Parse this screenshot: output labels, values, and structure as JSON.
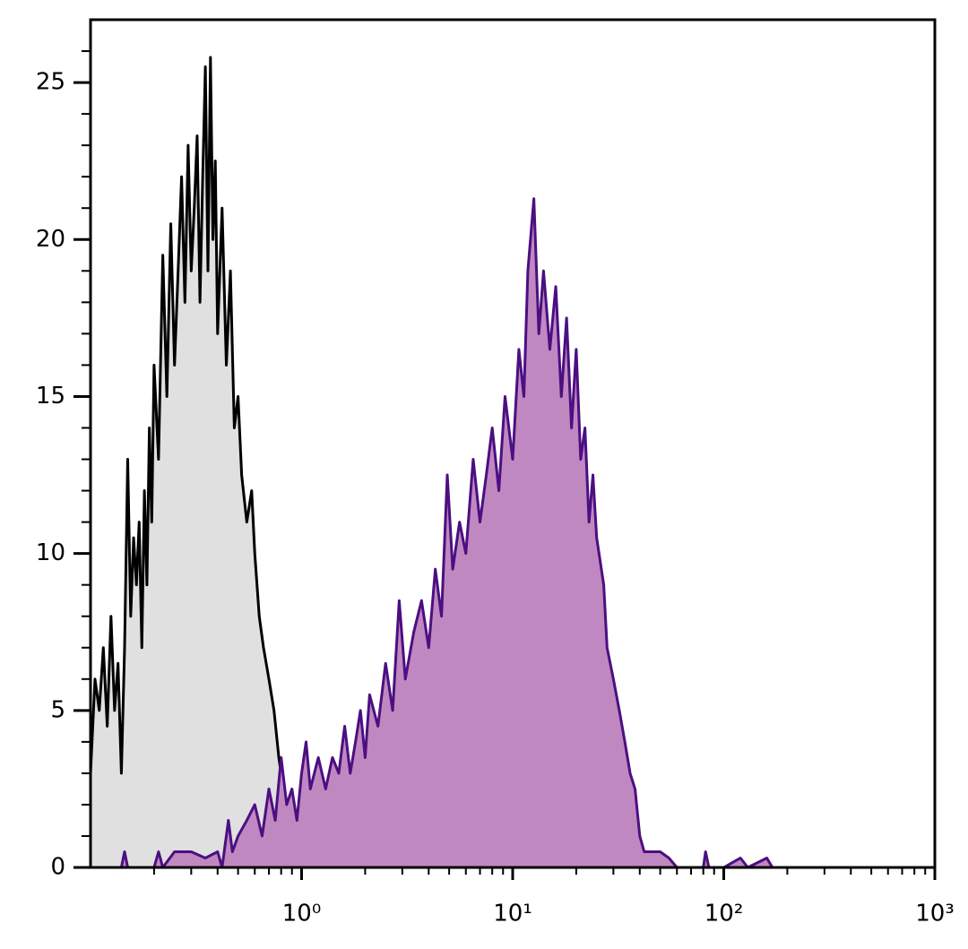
{
  "chart_data": {
    "type": "histogram-line",
    "xscale": "log",
    "xlim": [
      0.1,
      1000
    ],
    "xticks": [
      {
        "value": 1,
        "label": "10⁰"
      },
      {
        "value": 10,
        "label": "10¹"
      },
      {
        "value": 100,
        "label": "10²"
      },
      {
        "value": 1000,
        "label": "10³"
      }
    ],
    "xminorticks": [
      0.2,
      0.3,
      0.4,
      0.5,
      0.6,
      0.7,
      0.8,
      0.9,
      2,
      3,
      4,
      5,
      6,
      7,
      8,
      9,
      20,
      30,
      40,
      50,
      60,
      70,
      80,
      90,
      200,
      300,
      400,
      500,
      600,
      700,
      800,
      900
    ],
    "ylim": [
      0,
      27
    ],
    "yticks": [
      0,
      5,
      10,
      15,
      20,
      25
    ],
    "yminorticks": [
      1,
      2,
      3,
      4,
      6,
      7,
      8,
      9,
      11,
      12,
      13,
      14,
      16,
      17,
      18,
      19,
      21,
      22,
      23,
      24,
      26
    ],
    "series": [
      {
        "color": "#000000",
        "fill": "#e0e0e0",
        "x": [
          0.1,
          0.105,
          0.11,
          0.115,
          0.12,
          0.125,
          0.13,
          0.135,
          0.14,
          0.145,
          0.15,
          0.155,
          0.16,
          0.165,
          0.17,
          0.175,
          0.18,
          0.185,
          0.19,
          0.195,
          0.2,
          0.21,
          0.22,
          0.23,
          0.24,
          0.25,
          0.26,
          0.27,
          0.28,
          0.29,
          0.3,
          0.31,
          0.32,
          0.33,
          0.34,
          0.35,
          0.36,
          0.37,
          0.38,
          0.39,
          0.4,
          0.42,
          0.44,
          0.46,
          0.48,
          0.5,
          0.52,
          0.55,
          0.58,
          0.6,
          0.63,
          0.66,
          0.7,
          0.74,
          0.78,
          0.82,
          0.86,
          0.9,
          1.0
        ],
        "values": [
          3,
          6,
          5,
          7,
          4.5,
          8,
          5,
          6.5,
          3,
          7,
          13,
          8,
          10.5,
          9,
          11,
          7,
          12,
          9,
          14,
          11,
          16,
          13,
          19.5,
          15,
          20.5,
          16,
          19,
          22,
          18,
          23,
          19,
          21,
          23.3,
          18,
          22,
          25.5,
          19,
          25.8,
          20,
          22.5,
          17,
          21,
          16,
          19,
          14,
          15,
          12.5,
          11,
          12,
          10,
          8,
          7,
          6,
          5,
          3.5,
          2.5,
          1,
          0,
          0
        ]
      },
      {
        "color": "#4b0f82",
        "fill": "#c088c0",
        "x": [
          0.14,
          0.145,
          0.15,
          0.2,
          0.21,
          0.22,
          0.25,
          0.3,
          0.35,
          0.4,
          0.42,
          0.45,
          0.47,
          0.5,
          0.55,
          0.6,
          0.65,
          0.7,
          0.75,
          0.8,
          0.85,
          0.9,
          0.95,
          1.0,
          1.05,
          1.1,
          1.2,
          1.3,
          1.4,
          1.5,
          1.6,
          1.7,
          1.8,
          1.9,
          2.0,
          2.1,
          2.3,
          2.5,
          2.7,
          2.9,
          3.1,
          3.4,
          3.7,
          4.0,
          4.3,
          4.6,
          4.9,
          5.2,
          5.6,
          6.0,
          6.5,
          7.0,
          7.5,
          8.0,
          8.6,
          9.2,
          10,
          10.7,
          11.3,
          11.8,
          12.6,
          13.3,
          14,
          15,
          16,
          17,
          18,
          19,
          20,
          21,
          22,
          23,
          24,
          25,
          27,
          28,
          30,
          32,
          34,
          36,
          38,
          40,
          42,
          45,
          50,
          55,
          60,
          80,
          82,
          85,
          100,
          120,
          130,
          160,
          170
        ],
        "values": [
          0,
          0.5,
          0,
          0,
          0.5,
          0,
          0.5,
          0.5,
          0.3,
          0.5,
          0,
          1.5,
          0.5,
          1,
          1.5,
          2,
          1,
          2.5,
          1.5,
          3.5,
          2,
          2.5,
          1.5,
          3,
          4,
          2.5,
          3.5,
          2.5,
          3.5,
          3,
          4.5,
          3,
          4,
          5,
          3.5,
          5.5,
          4.5,
          6.5,
          5,
          8.5,
          6,
          7.5,
          8.5,
          7,
          9.5,
          8,
          12.5,
          9.5,
          11,
          10,
          13,
          11,
          12.5,
          14,
          12,
          15,
          13,
          16.5,
          15,
          19,
          21.3,
          17,
          19,
          16.5,
          18.5,
          15,
          17.5,
          14,
          16.5,
          13,
          14,
          11,
          12.5,
          10.5,
          9,
          7,
          6,
          5,
          4,
          3,
          2.5,
          1,
          0.5,
          0.5,
          0.5,
          0.3,
          0,
          0,
          0.5,
          0,
          0,
          0.3,
          0,
          0.3,
          0
        ]
      }
    ]
  }
}
